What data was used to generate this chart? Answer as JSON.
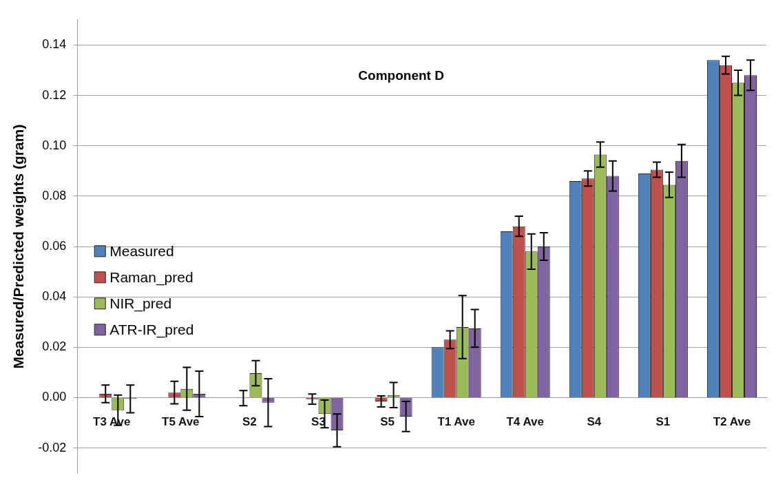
{
  "chart_data": {
    "type": "bar",
    "title": "Component D",
    "ylabel": "Measured/Predicted weights (gram)",
    "categories": [
      "T3 Ave",
      "T5 Ave",
      "S2",
      "S3",
      "S5",
      "T1 Ave",
      "T4 Ave",
      "S4",
      "S1",
      "T2 Ave"
    ],
    "series": [
      {
        "name": "Measured",
        "color": "#4f81bd",
        "values": [
          0,
          0,
          0,
          0,
          0,
          0.02,
          0.066,
          0.086,
          0.089,
          0.134
        ]
      },
      {
        "name": "Raman_pred",
        "color": "#c0504d",
        "values": [
          0.0015,
          0.002,
          -0.0002,
          -0.0006,
          -0.0015,
          0.023,
          0.068,
          0.087,
          0.0905,
          0.132
        ],
        "errors": [
          0.0035,
          0.0045,
          0.003,
          0.002,
          0.0022,
          0.0035,
          0.004,
          0.003,
          0.003,
          0.0035
        ]
      },
      {
        "name": "NIR_pred",
        "color": "#9bbb59",
        "values": [
          -0.005,
          0.0035,
          0.0097,
          -0.0065,
          0.001,
          0.028,
          0.058,
          0.0965,
          0.0845,
          0.125
        ],
        "errors": [
          0.006,
          0.0085,
          0.005,
          0.0055,
          0.005,
          0.0125,
          0.007,
          0.005,
          0.005,
          0.005
        ]
      },
      {
        "name": "ATR-IR_pred",
        "color": "#8064a2",
        "values": [
          -0.0005,
          0.0015,
          -0.002,
          -0.013,
          -0.0075,
          0.0275,
          0.06,
          0.088,
          0.094,
          0.128
        ],
        "errors": [
          0.0055,
          0.009,
          0.0095,
          0.0065,
          0.006,
          0.0075,
          0.0055,
          0.006,
          0.0065,
          0.006
        ]
      }
    ],
    "ylim": [
      -0.03,
      0.15
    ],
    "yticks": [
      {
        "value": -0.02,
        "label": "-0.02"
      },
      {
        "value": 0,
        "label": "0.00"
      },
      {
        "value": 0.02,
        "label": "0.02"
      },
      {
        "value": 0.04,
        "label": "0.04"
      },
      {
        "value": 0.06,
        "label": "0.06"
      },
      {
        "value": 0.08,
        "label": "0.08"
      },
      {
        "value": 0.1,
        "label": "0.10"
      },
      {
        "value": 0.12,
        "label": "0.12"
      },
      {
        "value": 0.14,
        "label": "0.14"
      }
    ],
    "grid": "y",
    "legend": "left"
  }
}
